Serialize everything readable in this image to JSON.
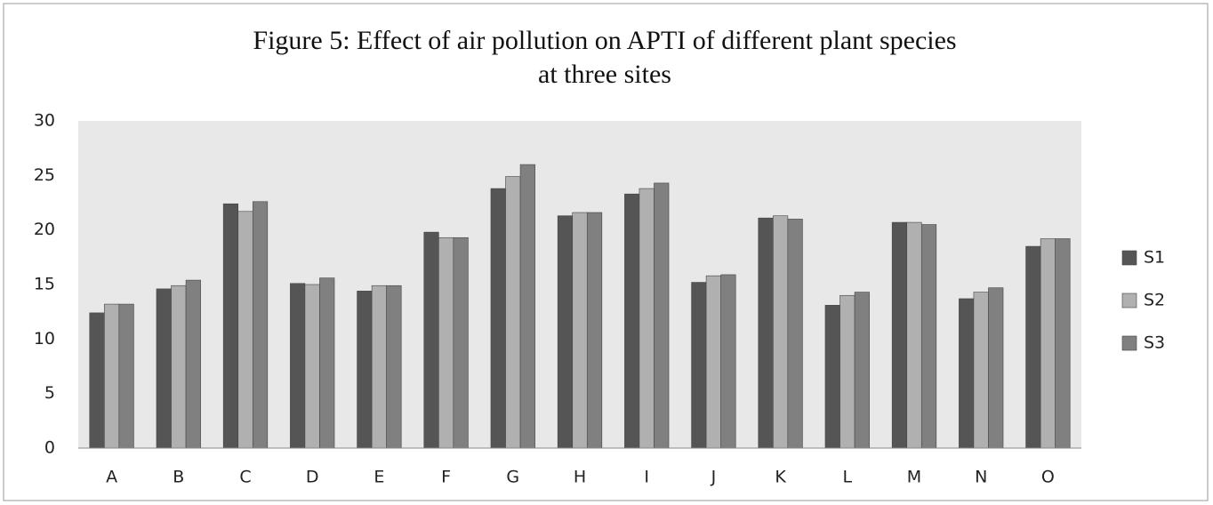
{
  "chart_data": {
    "type": "bar",
    "title": [
      "Figure 5: Effect of air pollution on APTI of different plant species",
      "at three sites"
    ],
    "categories": [
      "A",
      "B",
      "C",
      "D",
      "E",
      "F",
      "G",
      "H",
      "I",
      "J",
      "K",
      "L",
      "M",
      "N",
      "O"
    ],
    "series": [
      {
        "name": "S1",
        "color": "#555555",
        "values": [
          12.4,
          14.6,
          22.4,
          15.1,
          14.4,
          19.8,
          23.8,
          21.3,
          23.3,
          15.2,
          21.1,
          13.1,
          20.7,
          13.7,
          18.5
        ]
      },
      {
        "name": "S2",
        "color": "#b0b0b0",
        "values": [
          13.2,
          14.9,
          21.7,
          15.0,
          14.9,
          19.3,
          24.9,
          21.6,
          23.8,
          15.8,
          21.3,
          14.0,
          20.7,
          14.3,
          19.2
        ]
      },
      {
        "name": "S3",
        "color": "#808080",
        "values": [
          13.2,
          15.4,
          22.6,
          15.6,
          14.9,
          19.3,
          26.0,
          21.6,
          24.3,
          15.9,
          21.0,
          14.3,
          20.5,
          14.7,
          19.2
        ]
      }
    ],
    "ylim": [
      0,
      30
    ],
    "yticks": [
      0,
      5,
      10,
      15,
      20,
      25,
      30
    ],
    "grid": false,
    "legend": "right",
    "plot_background": "#e8e8e8"
  }
}
